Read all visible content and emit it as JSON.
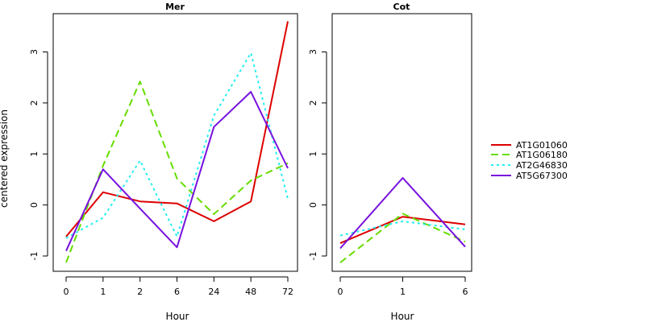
{
  "chart_data": [
    {
      "type": "line",
      "title": "Mer",
      "xlabel": "Hour",
      "ylabel": "centered expression",
      "categories": [
        "0",
        "1",
        "2",
        "6",
        "24",
        "48",
        "72"
      ],
      "ylim": [
        -1.3,
        3.75
      ],
      "yticks": [
        -1,
        0,
        1,
        2,
        3
      ],
      "grid": false,
      "series": [
        {
          "name": "AT1G01060",
          "color": "#dd0000",
          "dash": "solid",
          "values": [
            -0.62,
            0.25,
            0.07,
            0.03,
            -0.32,
            0.07,
            3.6
          ]
        },
        {
          "name": "AT1G06180",
          "color": "#66dd00",
          "dash": "dashed",
          "values": [
            -1.13,
            0.77,
            2.42,
            0.52,
            -0.18,
            0.48,
            0.82
          ]
        },
        {
          "name": "AT2G46830",
          "color": "#22eeee",
          "dash": "dotted",
          "values": [
            -0.65,
            -0.25,
            0.87,
            -0.62,
            1.75,
            2.98,
            0.12
          ]
        },
        {
          "name": "AT5G67300",
          "color": "#7711dd",
          "dash": "solid",
          "values": [
            -0.9,
            0.7,
            -0.07,
            -0.83,
            1.53,
            2.22,
            0.72
          ]
        }
      ]
    },
    {
      "type": "line",
      "title": "Cot",
      "xlabel": "Hour",
      "ylabel": "",
      "categories": [
        "0",
        "1",
        "6"
      ],
      "ylim": [
        -1.3,
        3.75
      ],
      "yticks": [
        -1,
        0,
        1,
        2,
        3
      ],
      "grid": false,
      "series": [
        {
          "name": "AT1G01060",
          "color": "#dd0000",
          "dash": "solid",
          "values": [
            -0.75,
            -0.23,
            -0.38
          ]
        },
        {
          "name": "AT1G06180",
          "color": "#66dd00",
          "dash": "dashed",
          "values": [
            -1.13,
            -0.17,
            -0.72
          ]
        },
        {
          "name": "AT2G46830",
          "color": "#22eeee",
          "dash": "dotted",
          "values": [
            -0.6,
            -0.32,
            -0.48
          ]
        },
        {
          "name": "AT5G67300",
          "color": "#7711dd",
          "dash": "solid",
          "values": [
            -0.85,
            0.53,
            -0.82
          ]
        }
      ]
    }
  ],
  "legend": {
    "position": "right",
    "entries": [
      {
        "label": "AT1G01060",
        "color": "#dd0000",
        "dash": "solid"
      },
      {
        "label": "AT1G06180",
        "color": "#66dd00",
        "dash": "dashed"
      },
      {
        "label": "AT2G46830",
        "color": "#22eeee",
        "dash": "dotted"
      },
      {
        "label": "AT5G67300",
        "color": "#7711dd",
        "dash": "solid"
      }
    ]
  }
}
